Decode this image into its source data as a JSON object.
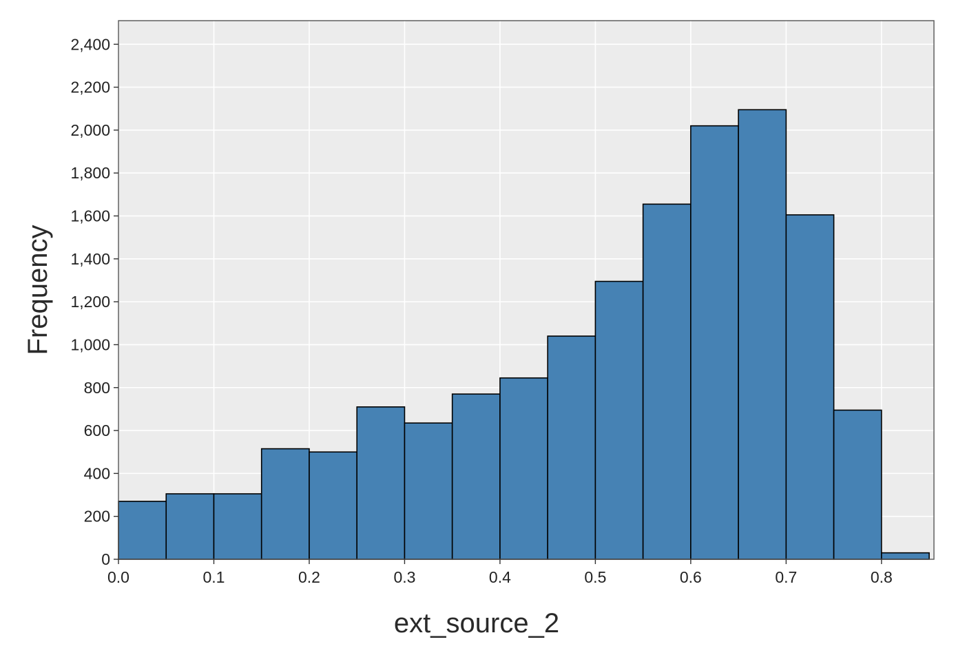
{
  "chart_data": {
    "type": "bar",
    "subtype": "histogram",
    "title": "",
    "xlabel": "ext_source_2",
    "ylabel": "Frequency",
    "bin_width": 0.05,
    "bins": [
      {
        "start": 0.0,
        "end": 0.05,
        "value": 270
      },
      {
        "start": 0.05,
        "end": 0.1,
        "value": 305
      },
      {
        "start": 0.1,
        "end": 0.15,
        "value": 305
      },
      {
        "start": 0.15,
        "end": 0.2,
        "value": 515
      },
      {
        "start": 0.2,
        "end": 0.25,
        "value": 500
      },
      {
        "start": 0.25,
        "end": 0.3,
        "value": 710
      },
      {
        "start": 0.3,
        "end": 0.35,
        "value": 635
      },
      {
        "start": 0.35,
        "end": 0.4,
        "value": 770
      },
      {
        "start": 0.4,
        "end": 0.45,
        "value": 845
      },
      {
        "start": 0.45,
        "end": 0.5,
        "value": 1040
      },
      {
        "start": 0.5,
        "end": 0.55,
        "value": 1295
      },
      {
        "start": 0.55,
        "end": 0.6,
        "value": 1655
      },
      {
        "start": 0.6,
        "end": 0.65,
        "value": 2020
      },
      {
        "start": 0.65,
        "end": 0.7,
        "value": 2095
      },
      {
        "start": 0.7,
        "end": 0.75,
        "value": 1605
      },
      {
        "start": 0.75,
        "end": 0.8,
        "value": 695
      },
      {
        "start": 0.8,
        "end": 0.85,
        "value": 30
      }
    ],
    "xlim": [
      0.0,
      0.855
    ],
    "ylim": [
      0,
      2510
    ],
    "x_ticks": [
      0.0,
      0.1,
      0.2,
      0.3,
      0.4,
      0.5,
      0.6,
      0.7,
      0.8
    ],
    "x_tick_labels": [
      "0.0",
      "0.1",
      "0.2",
      "0.3",
      "0.4",
      "0.5",
      "0.6",
      "0.7",
      "0.8"
    ],
    "y_ticks": [
      0,
      200,
      400,
      600,
      800,
      1000,
      1200,
      1400,
      1600,
      1800,
      2000,
      2200,
      2400
    ],
    "y_tick_labels": [
      "0",
      "200",
      "400",
      "600",
      "800",
      "1,000",
      "1,200",
      "1,400",
      "1,600",
      "1,800",
      "2,000",
      "2,200",
      "2,400"
    ],
    "grid": true,
    "legend": "none",
    "colors": {
      "bar_fill": "#4682b4",
      "bar_edge": "#000000",
      "plot_background": "#ececec",
      "grid": "#ffffff",
      "frame": "#555555"
    }
  }
}
